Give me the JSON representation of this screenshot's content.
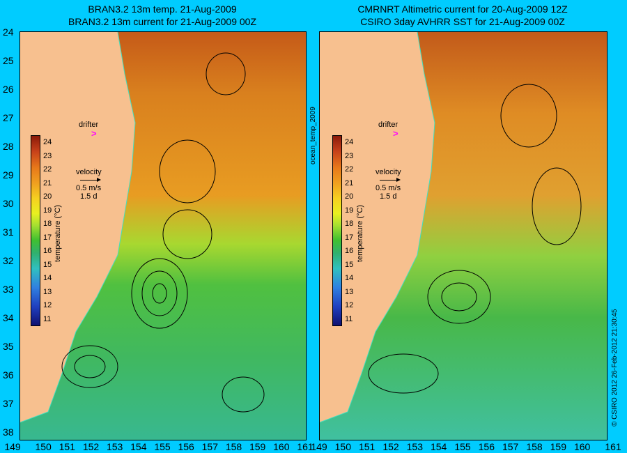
{
  "left_panel": {
    "title_line1": "BRAN3.2 13m temp. 21-Aug-2009",
    "title_line2": "BRAN3.2 13m current for 21-Aug-2009 00Z"
  },
  "right_panel": {
    "title_line1": "CMRNRT Altimetric current for 20-Aug-2009 12Z",
    "title_line2": "CSIRO 3day AVHRR SST for 21-Aug-2009 00Z"
  },
  "latitude_ticks": [
    "24",
    "25",
    "26",
    "27",
    "28",
    "29",
    "30",
    "31",
    "32",
    "33",
    "34",
    "35",
    "36",
    "37",
    "38"
  ],
  "longitude_ticks": [
    "149",
    "150",
    "151",
    "152",
    "153",
    "154",
    "155",
    "156",
    "157",
    "158",
    "159",
    "160",
    "161"
  ],
  "drifter_label": "drifter",
  "velocity_legend": {
    "label": "velocity",
    "speed": "0.5 m/s",
    "duration": "1.5 d"
  },
  "colorbar": {
    "ticks": [
      "24",
      "23",
      "22",
      "21",
      "20",
      "19",
      "18",
      "17",
      "16",
      "15",
      "14",
      "13",
      "12",
      "11"
    ],
    "label": "temperature (°C)"
  },
  "side_label": "ocean_temp_2009",
  "credit": "© CSIRO 2012   26-Feb-2012 21:30:45",
  "colors": {
    "background": "#00ccff",
    "land": "#f7c08f",
    "drifter": "#ff00ff",
    "warm": "#d2691e",
    "cool": "#33cc33"
  }
}
